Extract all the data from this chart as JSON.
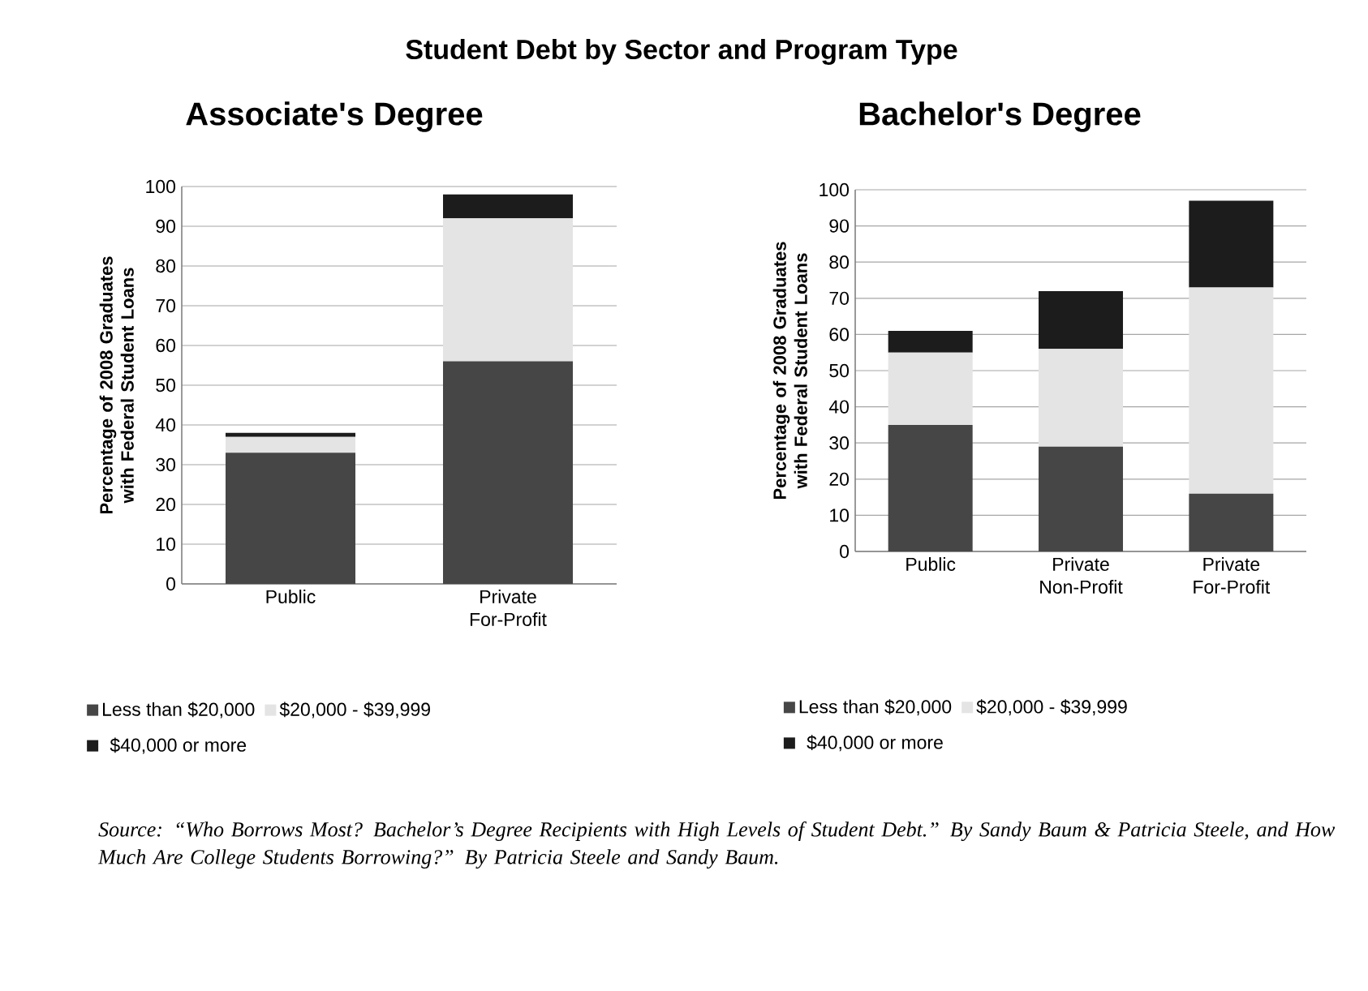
{
  "chart_data": [
    {
      "type": "bar",
      "stacked": true,
      "title": "Student Debt by Sector and Program Type",
      "subtitle": "Associate's Degree",
      "ylabel": "Percentage of 2008 Graduates with Federal Student Loans",
      "categories": [
        "Public",
        "Private For-Profit"
      ],
      "series": [
        {
          "name": "Less than $20,000",
          "color": "#464646",
          "values": [
            33,
            56
          ]
        },
        {
          "name": "$20,000 - $39,999",
          "color": "#e4e4e4",
          "values": [
            4,
            36
          ]
        },
        {
          "name": "$40,000 or more",
          "color": "#1c1c1c",
          "values": [
            1,
            6
          ]
        }
      ],
      "ylim": [
        0,
        100
      ],
      "yticks": [
        0,
        10,
        20,
        30,
        40,
        50,
        60,
        70,
        80,
        90,
        100
      ],
      "grid": "y",
      "legend": "bottom"
    },
    {
      "type": "bar",
      "stacked": true,
      "title": "Bachelor's Degree",
      "ylabel": "Percentage of 2008 Graduates with Federal Student Loans",
      "categories": [
        "Public",
        "Private Non-Profit",
        "Private For-Profit"
      ],
      "series": [
        {
          "name": "Less than $20,000",
          "color": "#464646",
          "values": [
            35,
            29,
            16
          ]
        },
        {
          "name": "$20,000 - $39,999",
          "color": "#e4e4e4",
          "values": [
            20,
            27,
            57
          ]
        },
        {
          "name": "$40,000 or more",
          "color": "#1c1c1c",
          "values": [
            6,
            16,
            24
          ]
        }
      ],
      "ylim": [
        0,
        100
      ],
      "yticks": [
        0,
        10,
        20,
        30,
        40,
        50,
        60,
        70,
        80,
        90,
        100
      ],
      "grid": "y",
      "legend": "bottom",
      "annotations": [
        "Source: “Who Borrows Most? Bachelor’s Degree Recipients with High Levels of Student Debt.” By Sandy Baum & Patricia Steele, and How Much Are College Students Borrowing?” By Patricia Steele and Sandy Baum."
      ]
    }
  ]
}
